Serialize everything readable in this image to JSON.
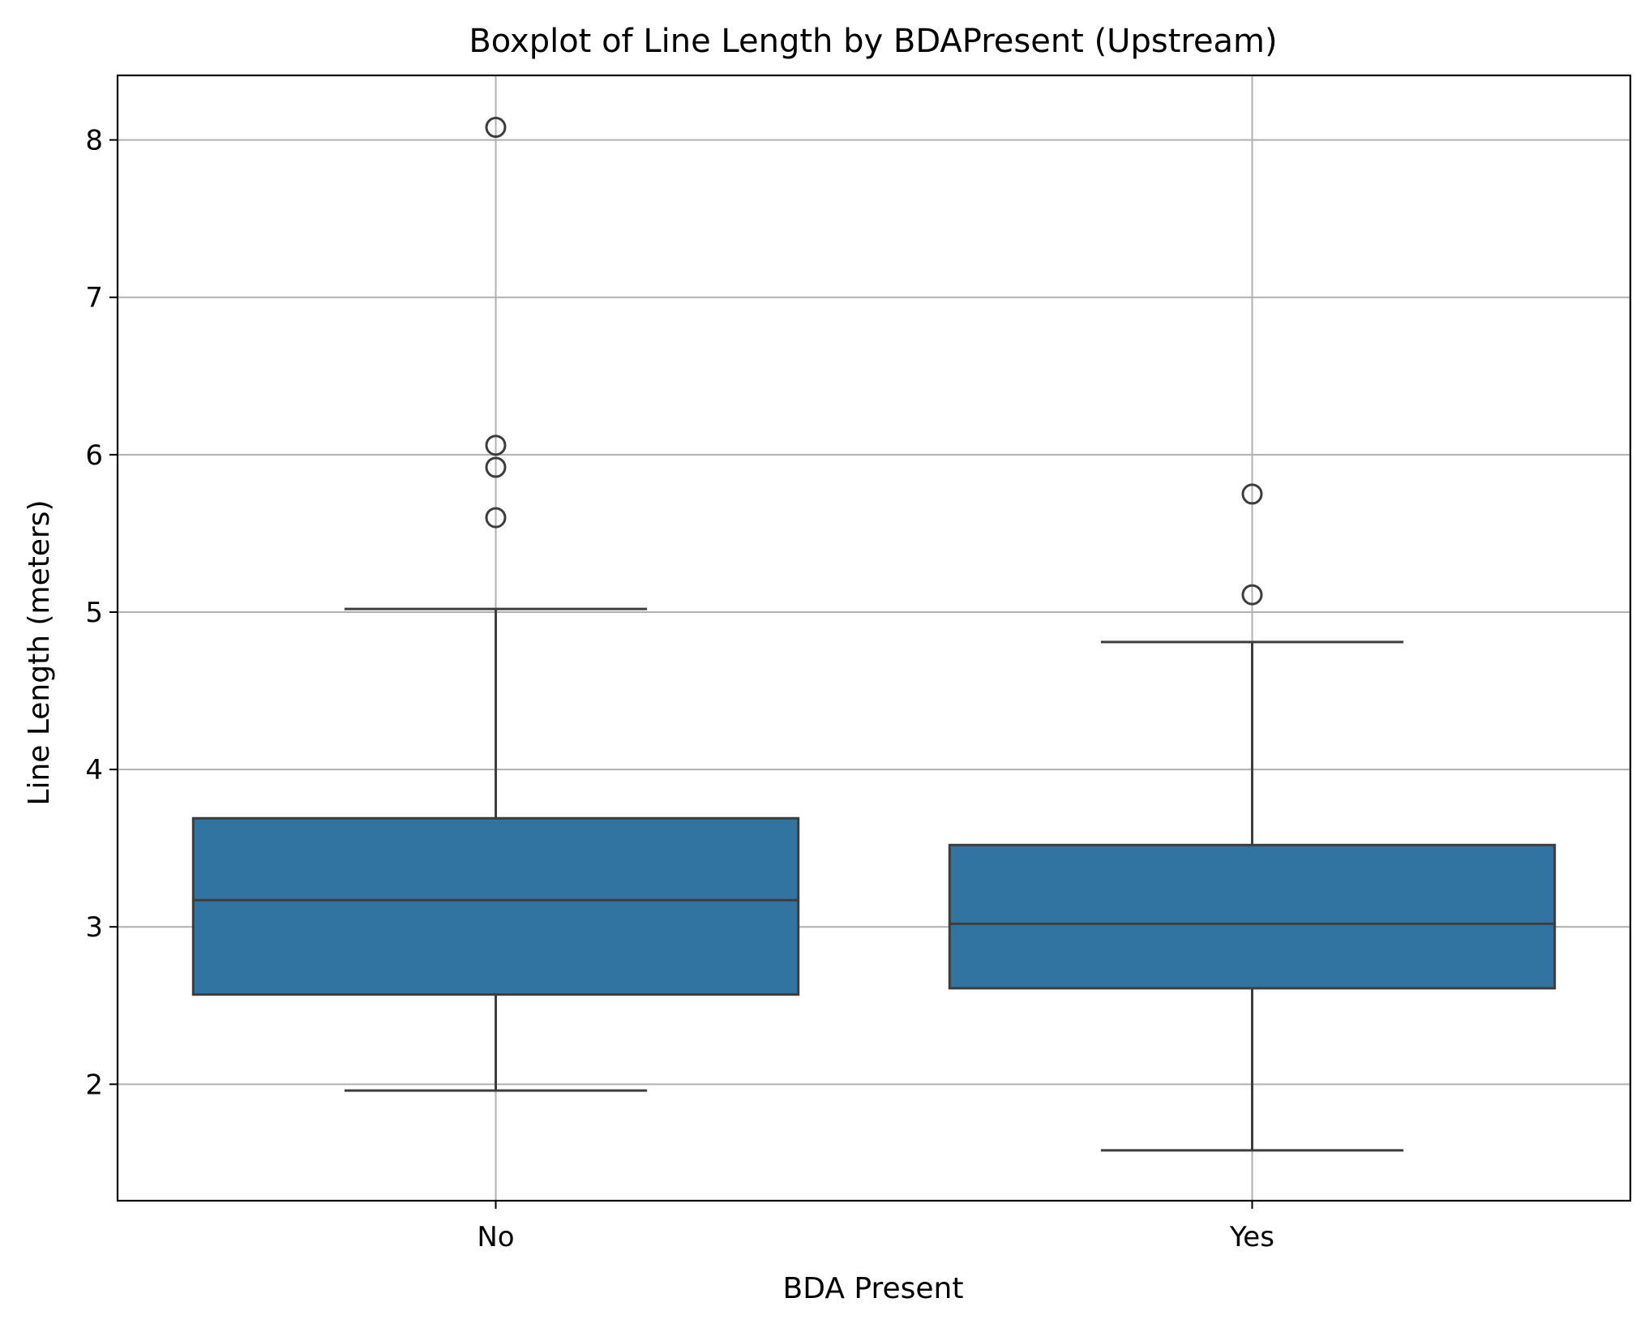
{
  "chart_data": {
    "type": "box",
    "title": "Boxplot of Line Length by BDAPresent (Upstream)",
    "xlabel": "BDA Present",
    "ylabel": "Line Length (meters)",
    "ylim": [
      1.26,
      8.41
    ],
    "yticks": [
      2,
      3,
      4,
      5,
      6,
      7,
      8
    ],
    "grid": true,
    "categories": [
      "No",
      "Yes"
    ],
    "boxes": [
      {
        "category": "No",
        "whisker_low": 1.96,
        "q1": 2.57,
        "median": 3.17,
        "q3": 3.69,
        "whisker_high": 5.02,
        "outliers": [
          8.08,
          6.06,
          5.92,
          5.6
        ]
      },
      {
        "category": "Yes",
        "whisker_low": 1.58,
        "q1": 2.61,
        "median": 3.02,
        "q3": 3.52,
        "whisker_high": 4.81,
        "outliers": [
          5.75,
          5.11
        ]
      }
    ],
    "colors": {
      "box_fill": "#3274a1",
      "line": "#3d3d3d",
      "grid": "#b0b0b0",
      "axis": "#000000"
    }
  }
}
